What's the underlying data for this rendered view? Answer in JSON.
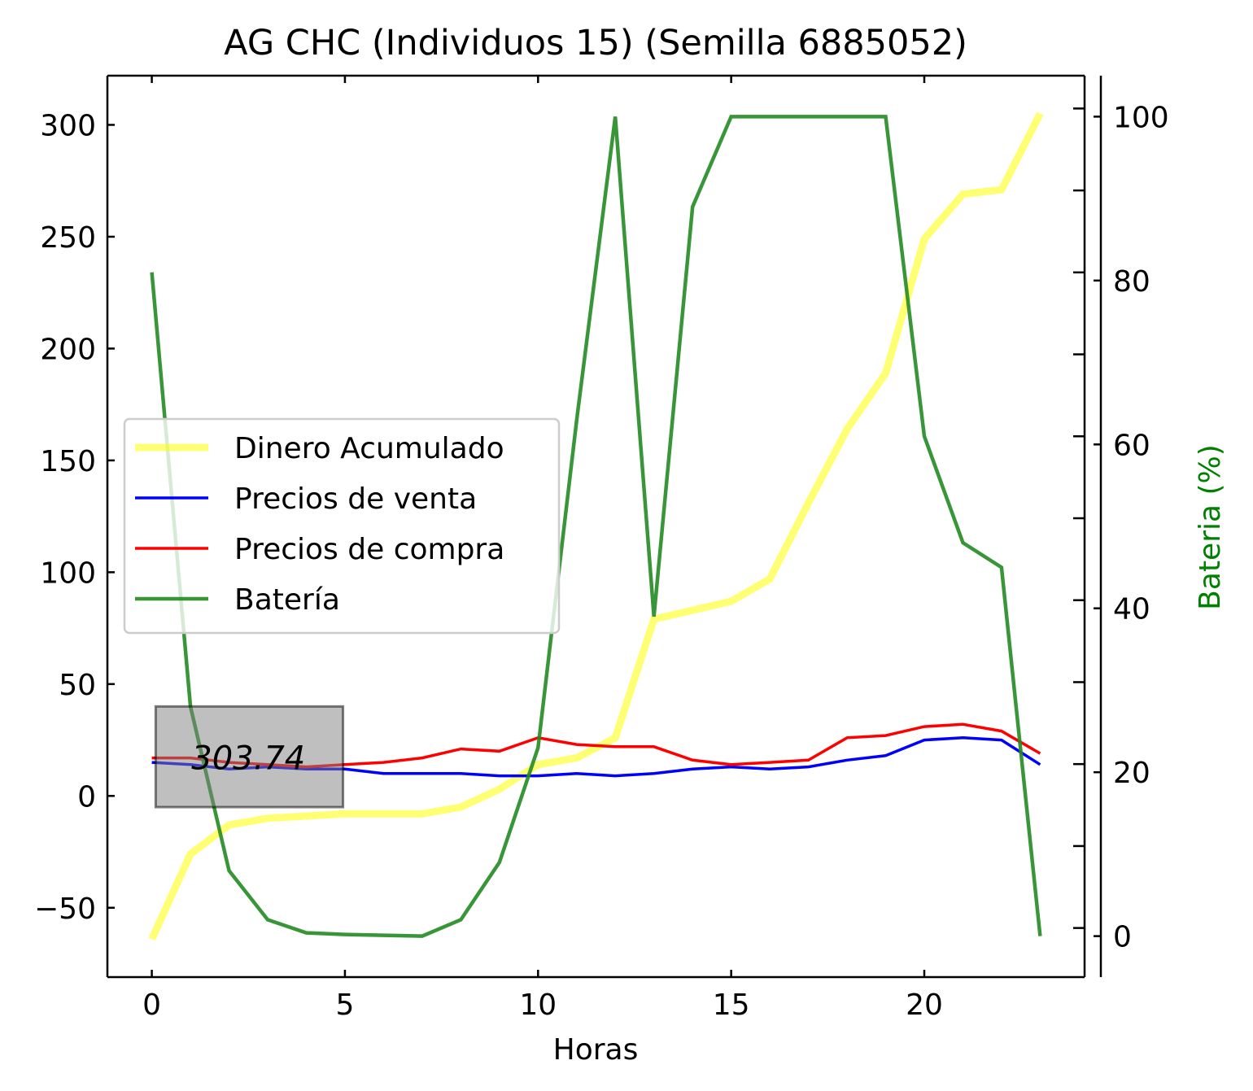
{
  "chart_data": {
    "type": "line",
    "title": "AG CHC (Individuos 15) (Semilla 6885052)",
    "xlabel": "Horas",
    "ylabel": "",
    "y2label": "Bateria (%)",
    "xlim": [
      -1.15,
      24.15
    ],
    "ylim": [
      -81,
      322
    ],
    "y2lim": [
      -5,
      105
    ],
    "xticks": [
      0,
      5,
      10,
      15,
      20
    ],
    "yticks": [
      -50,
      0,
      50,
      100,
      150,
      200,
      250,
      300
    ],
    "y2ticks": [
      0,
      20,
      40,
      60,
      80,
      100
    ],
    "grid": false,
    "legend_position": "center-left",
    "annotation": {
      "text": "303.74",
      "x": 2.5,
      "y": 17,
      "box_xrange": [
        0.1,
        4.95
      ],
      "box_yrange": [
        -5,
        40
      ]
    },
    "x": [
      0,
      1,
      2,
      3,
      4,
      5,
      6,
      7,
      8,
      9,
      10,
      11,
      12,
      13,
      14,
      15,
      16,
      17,
      18,
      19,
      20,
      21,
      22,
      23
    ],
    "series": [
      {
        "name": "Dinero Acumulado",
        "axis": "left",
        "color": "#ffff00",
        "values": [
          -64,
          -26,
          -13,
          -10,
          -9,
          -8,
          -8,
          -8,
          -5,
          3,
          14,
          17,
          26,
          79,
          83,
          87,
          97,
          131,
          164,
          189,
          249,
          269,
          271,
          305
        ]
      },
      {
        "name": "Precios de venta",
        "axis": "left",
        "color": "#0000ff",
        "values": [
          15,
          14,
          12,
          13,
          12,
          12,
          10,
          10,
          10,
          9,
          9,
          10,
          9,
          10,
          12,
          13,
          12,
          13,
          16,
          18,
          25,
          26,
          25,
          14
        ]
      },
      {
        "name": "Precios de compra",
        "axis": "left",
        "color": "#ff0000",
        "values": [
          17,
          17,
          15,
          14,
          13,
          14,
          15,
          17,
          21,
          20,
          26,
          23,
          22,
          22,
          16,
          14,
          15,
          16,
          26,
          27,
          31,
          32,
          29,
          19
        ]
      },
      {
        "name": "Batería",
        "axis": "right",
        "color": "#228b22",
        "values": [
          81,
          28,
          8,
          2,
          0.4,
          0.2,
          0.1,
          0,
          2,
          9,
          23,
          63,
          100,
          39,
          89,
          100,
          100,
          100,
          100,
          100,
          61,
          48,
          45,
          0
        ]
      }
    ]
  }
}
